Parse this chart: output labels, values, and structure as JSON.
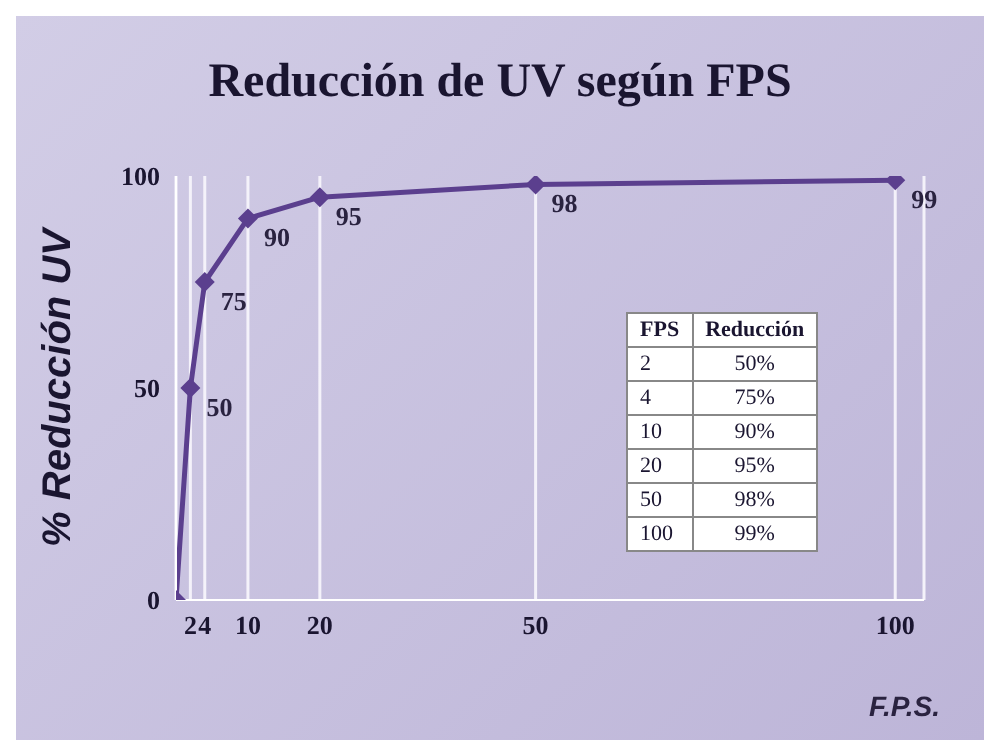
{
  "chart_data": {
    "type": "line",
    "title": "Reducción de UV según FPS",
    "xlabel": "F.P.S.",
    "ylabel": "% Reducción UV",
    "x": [
      0,
      2,
      4,
      10,
      20,
      50,
      100
    ],
    "series": [
      {
        "color": "#5b3f8e",
        "values": [
          0,
          50,
          75,
          90,
          95,
          98,
          99
        ],
        "value_labels": [
          null,
          "50",
          "75",
          "90",
          "95",
          "98",
          "99"
        ]
      }
    ],
    "xlim": [
      0,
      104
    ],
    "xticks": [
      2,
      4,
      10,
      20,
      50,
      100
    ],
    "ylim": [
      0,
      100
    ],
    "yticks": [
      0,
      50,
      100
    ],
    "grid": "x",
    "marker": "diamond",
    "line_style": "solid",
    "annotations": [
      "FPS",
      "Reducción",
      "2",
      "50%",
      "4",
      "75%",
      "10",
      "90%",
      "20",
      "95%",
      "50",
      "98%",
      "100",
      "99%"
    ]
  }
}
